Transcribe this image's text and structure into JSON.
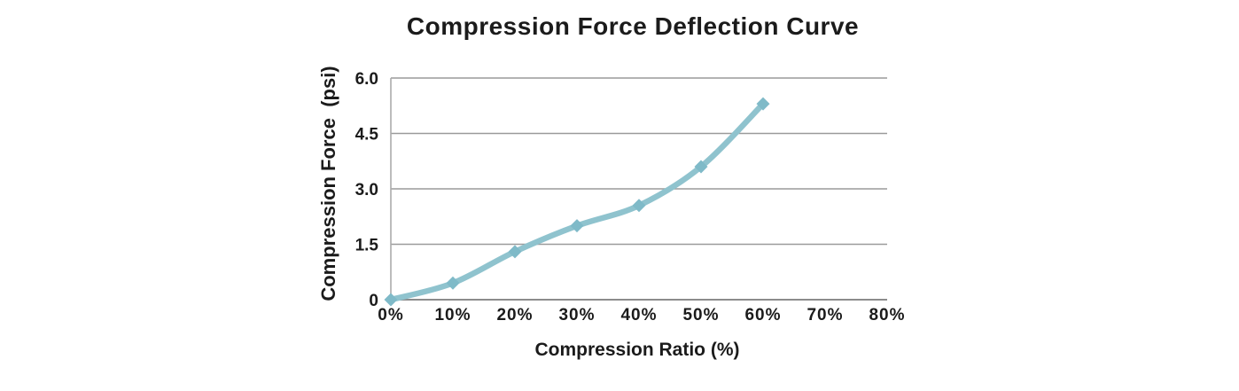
{
  "chart_data": {
    "type": "line",
    "title": "Compression Force Deflection Curve",
    "xlabel": "Compression Ratio (%)",
    "ylabel": "Compression Force  (psi)",
    "x_tick_labels": [
      "0%",
      "10%",
      "20%",
      "30%",
      "40%",
      "50%",
      "60%",
      "70%",
      "80%"
    ],
    "x_tick_values": [
      0,
      10,
      20,
      30,
      40,
      50,
      60,
      70,
      80
    ],
    "y_tick_labels": [
      "0",
      "1.5",
      "3.0",
      "4.5",
      "6.0"
    ],
    "y_tick_values": [
      0,
      1.5,
      3.0,
      4.5,
      6.0
    ],
    "xlim": [
      0,
      80
    ],
    "ylim": [
      0,
      6
    ],
    "grid": "horizontal",
    "legend": "none",
    "series": [
      {
        "name": "Compression Force Deflection",
        "x": [
          0,
          10,
          20,
          30,
          40,
          50,
          60
        ],
        "y": [
          0,
          0.45,
          1.3,
          2.0,
          2.55,
          3.6,
          5.3
        ],
        "line_style": "smooth",
        "marker": "diamond"
      }
    ],
    "colors": {
      "line": "#8FC3CE",
      "marker": "#7FBAC8",
      "grid": "#9A9A9A",
      "zero_axis": "#8C8C8C",
      "y_axis_line": "#ABABAB",
      "tick_text": "#1B1B1B",
      "title_text": "#1B1B1B",
      "background": "#FFFFFF"
    }
  }
}
